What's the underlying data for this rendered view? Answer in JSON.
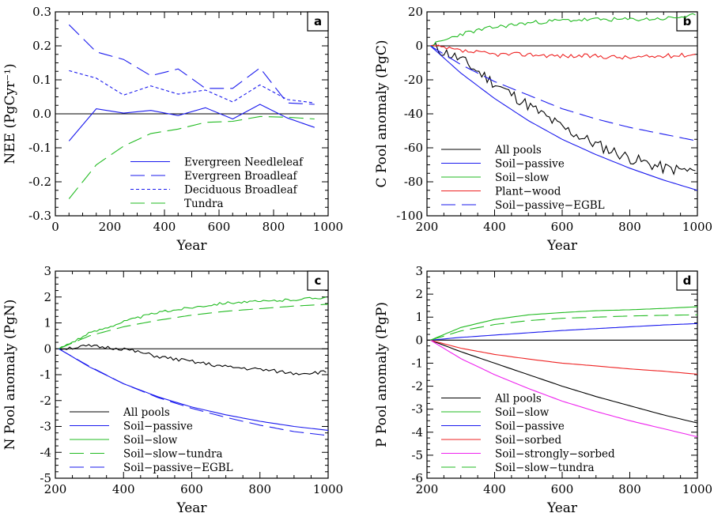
{
  "colors": {
    "black": "#000000",
    "blue": "#1a1aee",
    "green": "#22bb22",
    "red": "#ee2222",
    "magenta": "#ee22ee"
  },
  "chart_data": [
    {
      "panel": "a",
      "type": "line",
      "xlabel": "Year",
      "ylabel": "NEE (PgCyr⁻¹)",
      "xlim": [
        0,
        1000
      ],
      "ylim": [
        -0.3,
        0.3
      ],
      "xticks": [
        "0",
        "200",
        "400",
        "600",
        "800",
        "1000"
      ],
      "yticks": [
        "-0.3",
        "-0.2",
        "-0.1",
        "0.0",
        "0.1",
        "0.2",
        "0.3"
      ],
      "legend_position": "bottom-right",
      "x": [
        50,
        150,
        250,
        350,
        450,
        550,
        650,
        750,
        850,
        950
      ],
      "series": [
        {
          "name": "Evergreen Needleleaf",
          "color": "blue",
          "dash": "solid",
          "values": [
            -0.08,
            0.015,
            0.002,
            0.01,
            -0.005,
            0.018,
            -0.015,
            0.028,
            -0.012,
            -0.04
          ]
        },
        {
          "name": "Evergreen Broadleaf",
          "color": "blue",
          "dash": "longdash",
          "values": [
            0.262,
            0.182,
            0.16,
            0.112,
            0.132,
            0.075,
            0.075,
            0.135,
            0.032,
            0.028
          ]
        },
        {
          "name": "Deciduous Broadleaf",
          "color": "blue",
          "dash": "shortdash",
          "values": [
            0.127,
            0.105,
            0.055,
            0.082,
            0.058,
            0.07,
            0.035,
            0.085,
            0.042,
            0.032
          ]
        },
        {
          "name": "Tundra",
          "color": "green",
          "dash": "longdash",
          "values": [
            -0.25,
            -0.15,
            -0.095,
            -0.058,
            -0.045,
            -0.025,
            -0.022,
            -0.008,
            -0.01,
            -0.015
          ]
        }
      ],
      "hline": 0
    },
    {
      "panel": "b",
      "type": "line",
      "xlabel": "Year",
      "ylabel": "C Pool anomaly (PgC)",
      "xlim": [
        200,
        1000
      ],
      "ylim": [
        -100,
        20
      ],
      "xticks": [
        "200",
        "400",
        "600",
        "800",
        "1000"
      ],
      "yticks": [
        "-100",
        "-80",
        "-60",
        "-40",
        "-20",
        "0",
        "20"
      ],
      "legend_position": "bottom-left",
      "series": [
        {
          "name": "All pools",
          "color": "black",
          "dash": "solid",
          "noise": 3.5,
          "seed": 11,
          "x": [
            210,
            300,
            400,
            500,
            600,
            700,
            800,
            900,
            1000
          ],
          "values": [
            0,
            -8,
            -22,
            -35,
            -48,
            -58,
            -66,
            -72,
            -74
          ]
        },
        {
          "name": "Soil−passive",
          "color": "blue",
          "dash": "solid",
          "x": [
            210,
            300,
            400,
            500,
            600,
            700,
            800,
            900,
            1000
          ],
          "values": [
            0,
            -16,
            -31,
            -44,
            -55,
            -64,
            -72,
            -79,
            -85
          ]
        },
        {
          "name": "Soil−slow",
          "color": "green",
          "dash": "solid",
          "noise": 1.2,
          "seed": 23,
          "x": [
            210,
            300,
            400,
            500,
            600,
            700,
            800,
            900,
            1000
          ],
          "values": [
            0,
            7,
            11,
            13.5,
            15,
            15.5,
            15.5,
            16,
            18
          ]
        },
        {
          "name": "Plant−wood",
          "color": "red",
          "dash": "solid",
          "noise": 1.3,
          "seed": 37,
          "x": [
            210,
            300,
            400,
            500,
            600,
            700,
            800,
            900,
            1000
          ],
          "values": [
            0,
            -3,
            -5,
            -5,
            -6,
            -6,
            -7,
            -6,
            -5
          ]
        },
        {
          "name": "Soil−passive−EGBL",
          "color": "blue",
          "dash": "longdash",
          "x": [
            210,
            300,
            400,
            500,
            600,
            700,
            800,
            900,
            1000
          ],
          "values": [
            0,
            -11,
            -21,
            -29,
            -37,
            -43,
            -48,
            -52,
            -56
          ]
        }
      ],
      "hline": 0
    },
    {
      "panel": "c",
      "type": "line",
      "xlabel": "Year",
      "ylabel": "N Pool anomaly (PgN)",
      "xlim": [
        200,
        1000
      ],
      "ylim": [
        -5,
        3
      ],
      "xticks": [
        "200",
        "400",
        "600",
        "800",
        "1000"
      ],
      "yticks": [
        "-5",
        "-4",
        "-3",
        "-2",
        "-1",
        "0",
        "1",
        "2",
        "3"
      ],
      "legend_position": "bottom-left",
      "series": [
        {
          "name": "All pools",
          "color": "black",
          "dash": "solid",
          "noise": 0.07,
          "seed": 51,
          "x": [
            210,
            300,
            400,
            500,
            600,
            700,
            800,
            900,
            1000
          ],
          "values": [
            0,
            0.1,
            0,
            -0.3,
            -0.5,
            -0.7,
            -0.8,
            -0.95,
            -0.9
          ]
        },
        {
          "name": "Soil−passive",
          "color": "blue",
          "dash": "solid",
          "x": [
            210,
            300,
            400,
            500,
            600,
            700,
            800,
            900,
            1000
          ],
          "values": [
            0,
            -0.7,
            -1.35,
            -1.85,
            -2.25,
            -2.55,
            -2.8,
            -3.0,
            -3.15
          ]
        },
        {
          "name": "Soil−slow",
          "color": "green",
          "dash": "solid",
          "noise": 0.05,
          "seed": 63,
          "x": [
            210,
            300,
            400,
            500,
            600,
            700,
            800,
            900,
            1000
          ],
          "values": [
            0,
            0.6,
            1.05,
            1.4,
            1.6,
            1.78,
            1.82,
            1.9,
            2.0
          ]
        },
        {
          "name": "Soil−slow−tundra",
          "color": "green",
          "dash": "longdash",
          "x": [
            210,
            300,
            400,
            500,
            600,
            700,
            800,
            900,
            1000
          ],
          "values": [
            0,
            0.5,
            0.85,
            1.1,
            1.3,
            1.45,
            1.55,
            1.65,
            1.72
          ]
        },
        {
          "name": "Soil−passive−EGBL",
          "color": "blue",
          "dash": "longdash",
          "x": [
            210,
            300,
            400,
            500,
            600,
            700,
            800,
            900,
            1000
          ],
          "values": [
            0,
            -0.68,
            -1.35,
            -1.88,
            -2.3,
            -2.65,
            -2.95,
            -3.2,
            -3.35
          ]
        }
      ],
      "hline": 0
    },
    {
      "panel": "d",
      "type": "line",
      "xlabel": "Year",
      "ylabel": "P Pool anomaly (PgP)",
      "xlim": [
        200,
        1000
      ],
      "ylim": [
        -6,
        3
      ],
      "xticks": [
        "200",
        "400",
        "600",
        "800",
        "1000"
      ],
      "yticks": [
        "-6",
        "-5",
        "-4",
        "-3",
        "-2",
        "-1",
        "0",
        "1",
        "2",
        "3"
      ],
      "legend_position": "bottom-left",
      "series": [
        {
          "name": "All pools",
          "color": "black",
          "dash": "solid",
          "x": [
            210,
            300,
            400,
            500,
            600,
            700,
            800,
            900,
            1000
          ],
          "values": [
            0,
            -0.5,
            -1.0,
            -1.5,
            -2.0,
            -2.45,
            -2.85,
            -3.25,
            -3.6
          ]
        },
        {
          "name": "Soil−slow",
          "color": "green",
          "dash": "solid",
          "x": [
            210,
            300,
            400,
            500,
            600,
            700,
            800,
            900,
            1000
          ],
          "values": [
            0,
            0.55,
            0.9,
            1.1,
            1.2,
            1.28,
            1.32,
            1.38,
            1.45
          ]
        },
        {
          "name": "Soil−passive",
          "color": "blue",
          "dash": "solid",
          "x": [
            210,
            300,
            400,
            500,
            600,
            700,
            800,
            900,
            1000
          ],
          "values": [
            0,
            0.12,
            0.22,
            0.32,
            0.42,
            0.5,
            0.58,
            0.66,
            0.72
          ]
        },
        {
          "name": "Soil−sorbed",
          "color": "red",
          "dash": "solid",
          "x": [
            210,
            300,
            400,
            500,
            600,
            700,
            800,
            900,
            1000
          ],
          "values": [
            0,
            -0.35,
            -0.62,
            -0.82,
            -1.0,
            -1.12,
            -1.25,
            -1.35,
            -1.48
          ]
        },
        {
          "name": "Soil−strongly−sorbed",
          "color": "magenta",
          "dash": "solid",
          "x": [
            210,
            300,
            400,
            500,
            600,
            700,
            800,
            900,
            1000
          ],
          "values": [
            0,
            -0.8,
            -1.5,
            -2.1,
            -2.65,
            -3.1,
            -3.5,
            -3.85,
            -4.2
          ]
        },
        {
          "name": "Soil−slow−tundra",
          "color": "green",
          "dash": "longdash",
          "x": [
            210,
            300,
            400,
            500,
            600,
            700,
            800,
            900,
            1000
          ],
          "values": [
            0,
            0.4,
            0.68,
            0.85,
            0.95,
            1.0,
            1.05,
            1.08,
            1.1
          ]
        }
      ],
      "hline": 0
    }
  ]
}
